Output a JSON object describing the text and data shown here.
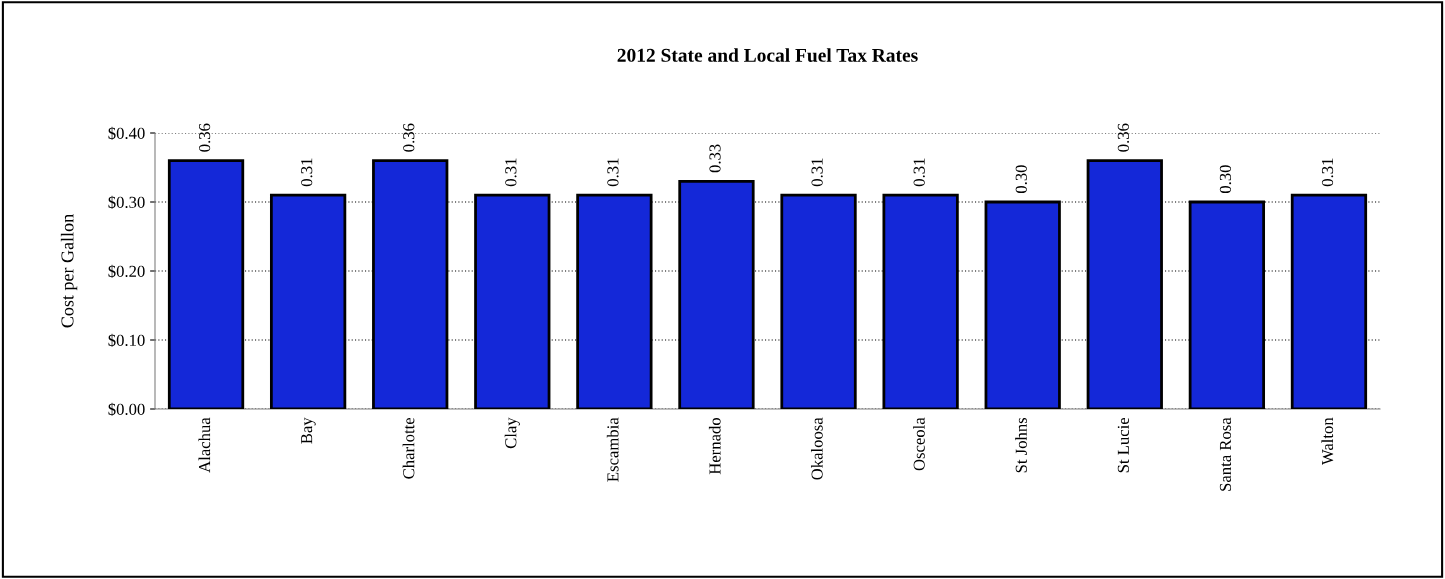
{
  "chart_data": {
    "type": "bar",
    "title": "2012 State and Local Fuel Tax Rates",
    "ylabel": "Cost per Gallon",
    "categories": [
      "Alachua",
      "Bay",
      "Charlotte",
      "Clay",
      "Escambia",
      "Hernado",
      "Okaloosa",
      "Osceola",
      "St Johns",
      "St Lucie",
      "Santa Rosa",
      "Walton"
    ],
    "values": [
      0.36,
      0.31,
      0.36,
      0.31,
      0.31,
      0.33,
      0.31,
      0.31,
      0.3,
      0.36,
      0.3,
      0.31
    ],
    "value_labels": [
      "0.36",
      "0.31",
      "0.36",
      "0.31",
      "0.31",
      "0.33",
      "0.31",
      "0.31",
      "0.30",
      "0.36",
      "0.30",
      "0.31"
    ],
    "color": "#1428d8",
    "ylim": [
      0,
      0.4
    ],
    "yticks": [
      {
        "value": 0,
        "label": "$0.00"
      },
      {
        "value": 0.1,
        "label": "$0.10"
      },
      {
        "value": 0.2,
        "label": "$0.20"
      },
      {
        "value": 0.3,
        "label": "$0.30"
      },
      {
        "value": 0.4,
        "label": "$0.40"
      }
    ],
    "grid": "y",
    "legend": false
  }
}
